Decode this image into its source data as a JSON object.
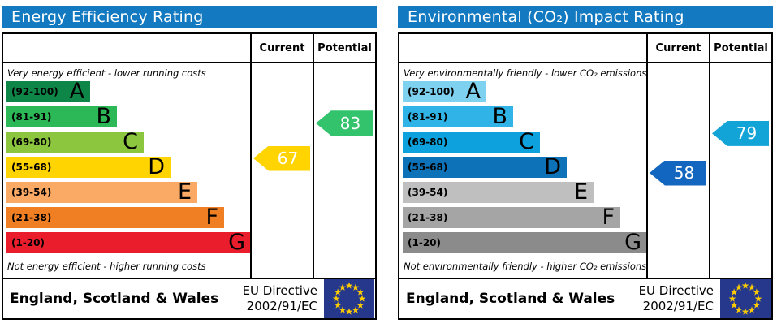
{
  "chart_data": [
    {
      "type": "bar",
      "title": "Energy Efficiency Rating",
      "categories": [
        "A (92-100)",
        "B (81-91)",
        "C (69-80)",
        "D (55-68)",
        "E (39-54)",
        "F (21-38)",
        "G (1-20)"
      ],
      "current": 67,
      "potential": 83,
      "notes": [
        "Very energy efficient - lower running costs",
        "Not energy efficient - higher running costs"
      ]
    },
    {
      "type": "bar",
      "title": "Environmental (CO₂) Impact Rating",
      "categories": [
        "A (92-100)",
        "B (81-91)",
        "C (69-80)",
        "D (55-68)",
        "E (39-54)",
        "F (21-38)",
        "G (1-20)"
      ],
      "current": 58,
      "potential": 79,
      "notes": [
        "Very environmentally friendly - lower CO₂ emissions",
        "Not environmentally friendly - higher CO₂ emissions"
      ]
    }
  ],
  "colors": {
    "header_blue": "#1379c0",
    "eu_flag_blue": "#26388c",
    "eu_star_yellow": "#ffcc00"
  },
  "panels": [
    {
      "title": "Energy Efficiency Rating",
      "columns": {
        "current": "Current",
        "potential": "Potential"
      },
      "top_note": "Very energy efficient - lower running costs",
      "bottom_note": "Not energy efficient - higher running costs",
      "bands": [
        {
          "range_label": "(92-100)",
          "low": 92,
          "high": 100,
          "letter": "A",
          "color": "#0e8647"
        },
        {
          "range_label": "(81-91)",
          "low": 81,
          "high": 91,
          "letter": "B",
          "color": "#2cb857"
        },
        {
          "range_label": "(69-80)",
          "low": 69,
          "high": 80,
          "letter": "C",
          "color": "#8cc63f"
        },
        {
          "range_label": "(55-68)",
          "low": 55,
          "high": 68,
          "letter": "D",
          "color": "#ffd400"
        },
        {
          "range_label": "(39-54)",
          "low": 39,
          "high": 54,
          "letter": "E",
          "color": "#fbaa65"
        },
        {
          "range_label": "(21-38)",
          "low": 21,
          "high": 38,
          "letter": "F",
          "color": "#f07e22"
        },
        {
          "range_label": "(1-20)",
          "low": 1,
          "high": 20,
          "letter": "G",
          "color": "#ea1d2c"
        }
      ],
      "current": {
        "value": 67,
        "color": "#ffd400"
      },
      "potential": {
        "value": 83,
        "color": "#33c36c"
      },
      "footer": {
        "region": "England, Scotland & Wales",
        "directive_line1": "EU Directive",
        "directive_line2": "2002/91/EC"
      }
    },
    {
      "title": "Environmental (CO₂) Impact Rating",
      "columns": {
        "current": "Current",
        "potential": "Potential"
      },
      "top_note": "Very environmentally friendly - lower CO₂ emissions",
      "bottom_note": "Not environmentally friendly - higher CO₂ emissions",
      "bands": [
        {
          "range_label": "(92-100)",
          "low": 92,
          "high": 100,
          "letter": "A",
          "color": "#7fd1f0"
        },
        {
          "range_label": "(81-91)",
          "low": 81,
          "high": 91,
          "letter": "B",
          "color": "#30b4e7"
        },
        {
          "range_label": "(69-80)",
          "low": 69,
          "high": 80,
          "letter": "C",
          "color": "#0da2dd"
        },
        {
          "range_label": "(55-68)",
          "low": 55,
          "high": 68,
          "letter": "D",
          "color": "#0d72b7"
        },
        {
          "range_label": "(39-54)",
          "low": 39,
          "high": 54,
          "letter": "E",
          "color": "#bfbfbf"
        },
        {
          "range_label": "(21-38)",
          "low": 21,
          "high": 38,
          "letter": "F",
          "color": "#a5a5a5"
        },
        {
          "range_label": "(1-20)",
          "low": 1,
          "high": 20,
          "letter": "G",
          "color": "#8b8b8b"
        }
      ],
      "current": {
        "value": 58,
        "color": "#1266bf"
      },
      "potential": {
        "value": 79,
        "color": "#12a3d7"
      },
      "footer": {
        "region": "England, Scotland & Wales",
        "directive_line1": "EU Directive",
        "directive_line2": "2002/91/EC"
      }
    }
  ]
}
